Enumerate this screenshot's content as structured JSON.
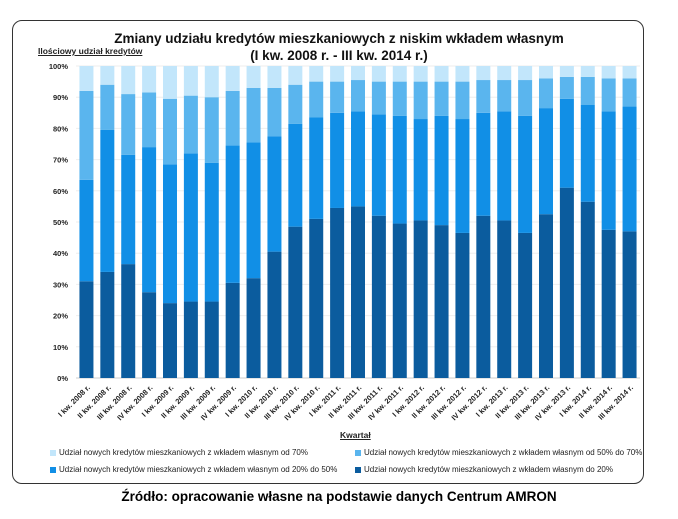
{
  "chart_data": {
    "type": "bar",
    "stacked": true,
    "title": "Zmiany udziału kredytów mieszkaniowych z niskim wkładem własnym",
    "subtitle": "(I kw. 2008 r. - III kw. 2014 r.)",
    "ylabel": "Ilościowy udział kredytów",
    "xlabel": "Kwartał",
    "ylim": [
      0,
      100
    ],
    "yticks": [
      "0%",
      "10%",
      "20%",
      "30%",
      "40%",
      "50%",
      "60%",
      "70%",
      "80%",
      "90%",
      "100%"
    ],
    "grid": true,
    "legend_position": "bottom",
    "categories": [
      "I kw. 2008 r.",
      "II kw. 2008 r.",
      "III kw. 2008 r.",
      "IV kw. 2008 r.",
      "I kw. 2009 r.",
      "II kw. 2009 r.",
      "III kw. 2009 r.",
      "IV kw. 2009 r.",
      "I kw. 2010 r.",
      "II kw. 2010 r.",
      "III kw. 2010 r.",
      "IV kw. 2010 r.",
      "I kw. 2011 r.",
      "II kw. 2011 r.",
      "III kw. 2011 r.",
      "IV kw. 2011 r.",
      "I kw. 2012 r.",
      "II kw. 2012 r.",
      "III kw. 2012 r.",
      "IV kw. 2012 r.",
      "I kw. 2013 r.",
      "II kw. 2013 r.",
      "III kw. 2013 r.",
      "IV kw. 2013 r.",
      "I kw. 2014 r.",
      "II kw. 2014 r.",
      "III kw. 2014 r."
    ],
    "series": [
      {
        "name": "Udział nowych kredytów mieszkaniowych z wkładem własnym do 20%",
        "color": "#0b5c9e",
        "values": [
          31,
          34,
          36.5,
          27.5,
          24,
          24.5,
          24.5,
          30.5,
          32,
          40.5,
          48.5,
          51,
          54.5,
          55,
          52,
          49.5,
          50.5,
          49,
          46.5,
          52,
          50.5,
          46.5,
          52.5,
          61,
          56.5,
          47.5,
          47
        ]
      },
      {
        "name": "Udział nowych kredytów mieszkaniowych z wkładem własnym od 20% do 50%",
        "color": "#118fe6",
        "values": [
          32.5,
          45.5,
          35,
          46.5,
          44.5,
          47.5,
          44.5,
          44,
          43.5,
          37,
          33,
          32.5,
          30.5,
          30.5,
          32.5,
          34.5,
          32.5,
          35,
          36.5,
          33,
          35,
          37.5,
          34,
          28.5,
          31,
          38,
          40
        ]
      },
      {
        "name": "Udział nowych kredytów mieszkaniowych z wkładem własnym od 50% do 70%",
        "color": "#5ab5ee",
        "values": [
          28.5,
          14.5,
          19.5,
          17.5,
          21,
          18.5,
          21,
          17.5,
          17.5,
          15.5,
          12.5,
          11.5,
          10,
          10,
          10.5,
          11,
          12,
          11,
          12,
          10.5,
          10,
          11.5,
          9.5,
          7,
          9,
          10.5,
          9
        ]
      },
      {
        "name": "Udział nowych kredytów mieszkaniowych z wkładem własnym od 70%",
        "color": "#c2e6fb",
        "values": [
          8,
          6,
          9,
          8.5,
          10.5,
          9.5,
          10,
          8,
          7,
          7,
          6,
          5,
          5,
          4.5,
          5,
          5,
          5,
          5,
          5,
          4.5,
          4.5,
          4.5,
          4,
          3.5,
          3.5,
          4,
          4
        ]
      }
    ],
    "legend_order": [
      3,
      2,
      1,
      0
    ]
  },
  "source": "Źródło: opracowanie własne na podstawie danych Centrum AMRON"
}
